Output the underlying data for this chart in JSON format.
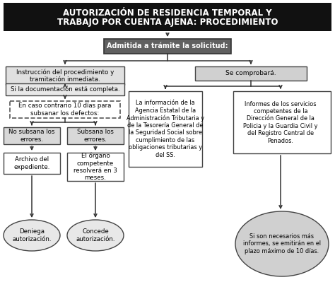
{
  "title_line1": "AUTORIZACIÓN DE RESIDENCIA TEMPORAL Y",
  "title_line2": "TRABAJO POR CUENTA AJENA: PROCEDIMIENTO",
  "title_bg": "#111111",
  "title_fg": "#ffffff",
  "node_admitida": "Admitida a trámite la solicitud:",
  "node_admitida_bg": "#555555",
  "node_admitida_fg": "#ffffff",
  "node_instruccion": "Instrucción del procedimiento y\ntramitación inmediata.",
  "node_comprobara": "Se comprobará.",
  "node_documentacion": "Si la documentación está completa.",
  "node_encaso": "En caso contrario 10 días para\nsubsanar los defectos:",
  "node_nosubsana": "No subsana los\nerrores.",
  "node_subsana": "Subsana los\nerrores.",
  "node_archivo": "Archivo del\nexpediente.",
  "node_organo": "El órgano\ncompetente\nresolverá en 3\nmeses.",
  "node_deniega": "Deniega\nautorización.",
  "node_concede": "Concede\nautorización.",
  "node_agencia": "La información de la\nAgencia Estatal de la\nAdministración Tributaria y\nde la Tesorería General de\nla Seguridad Social sobre\ncumplimiento de las\nobligaciones tributarias y\ndel SS.",
  "node_informes": "Informes de los servicios\ncompetentes de la\nDirección General de la\nPolicia y la Guardia Civil y\ndel Registro Central de\nPenados.",
  "node_sinecesarios": "Si son necesarios más\ninformes, se emitirán en el\nplazo máximo de 10 días.",
  "bg_color": "#ffffff",
  "box_bg_light": "#e8e8e8",
  "box_bg_white": "#ffffff",
  "box_bg_gray": "#cccccc",
  "box_border": "#444444",
  "arrow_color": "#333333"
}
